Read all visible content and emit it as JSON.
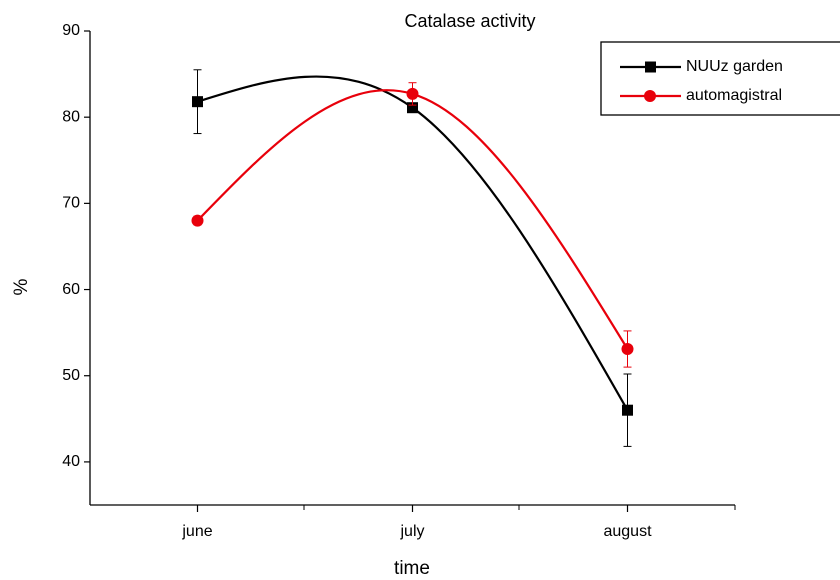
{
  "chart_data": {
    "type": "line",
    "title": "Catalase activity",
    "x_label": "time",
    "y_label": "%",
    "categories": [
      "june",
      "july",
      "august"
    ],
    "series": [
      {
        "name": "NUUz garden",
        "color": "#000000",
        "marker": "square",
        "values": [
          81.8,
          81.1,
          46.0
        ],
        "errors": [
          3.7,
          0.5,
          4.2
        ]
      },
      {
        "name": "automagistral",
        "color": "#e8000b",
        "marker": "circle",
        "values": [
          68.0,
          82.7,
          53.1
        ],
        "errors": [
          0.5,
          1.3,
          2.1
        ]
      }
    ],
    "ylim": [
      35,
      90
    ],
    "yticks": [
      40,
      50,
      60,
      70,
      80,
      90
    ],
    "smooth": true,
    "legend": "top-right"
  }
}
